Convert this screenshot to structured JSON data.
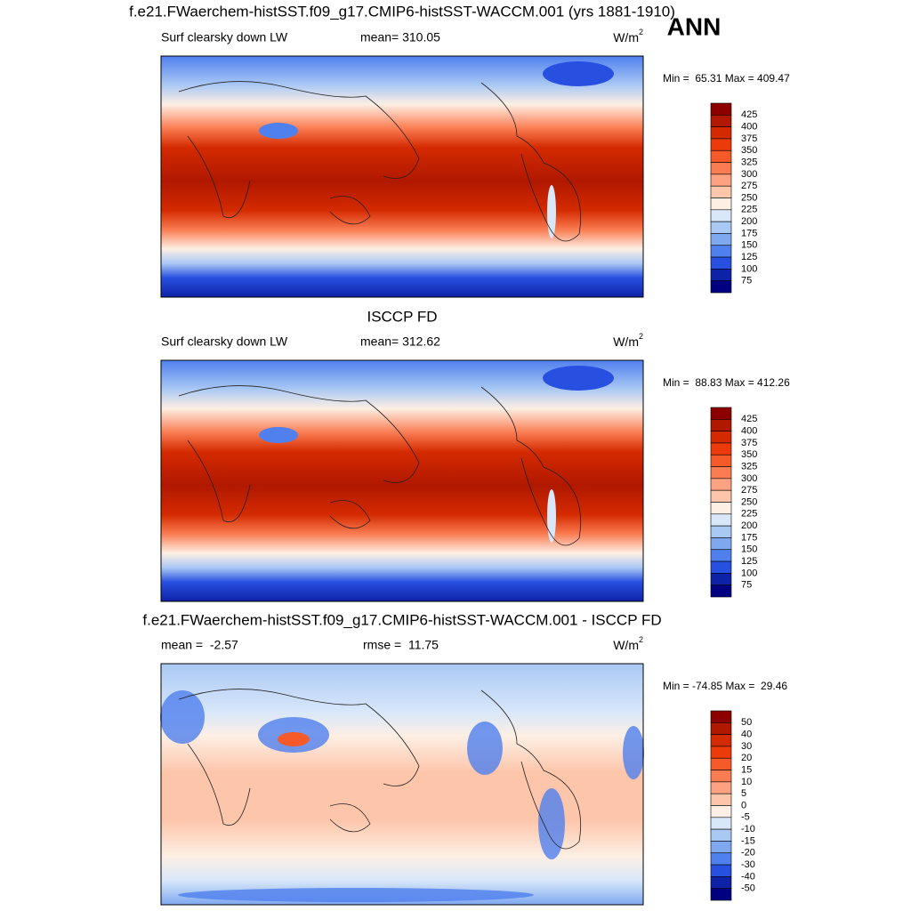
{
  "header": {
    "title": "f.e21.FWaerchem-histSST.f09_g17.CMIP6-histSST-WACCM.001 (yrs 1881-1910)",
    "season": "ANN"
  },
  "panels": [
    {
      "left_label": "Surf clearsky down LW",
      "center_label": "mean= 310.05",
      "units": {
        "base": "W/m",
        "sup": "2"
      },
      "range_text": "Min =  65.31 Max = 409.47",
      "colorbar": {
        "labels": [
          425,
          400,
          375,
          350,
          325,
          300,
          275,
          250,
          225,
          200,
          175,
          150,
          125,
          100,
          75
        ],
        "colors": [
          "#8c0000",
          "#b01800",
          "#d42a00",
          "#ec3a0a",
          "#f65a28",
          "#fa7c52",
          "#fca283",
          "#fdc6ab",
          "#fdefe4",
          "#d8e7fa",
          "#aac8f4",
          "#7fa8f0",
          "#4f80ee",
          "#2850e0",
          "#0e22a8",
          "#000080"
        ]
      }
    },
    {
      "title": "ISCCP FD",
      "left_label": "Surf clearsky down LW",
      "center_label": "mean= 312.62",
      "units": {
        "base": "W/m",
        "sup": "2"
      },
      "range_text": "Min =  88.83 Max = 412.26",
      "colorbar": {
        "labels": [
          425,
          400,
          375,
          350,
          325,
          300,
          275,
          250,
          225,
          200,
          175,
          150,
          125,
          100,
          75
        ],
        "colors": [
          "#8c0000",
          "#b01800",
          "#d42a00",
          "#ec3a0a",
          "#f65a28",
          "#fa7c52",
          "#fca283",
          "#fdc6ab",
          "#fdefe4",
          "#d8e7fa",
          "#aac8f4",
          "#7fa8f0",
          "#4f80ee",
          "#2850e0",
          "#0e22a8",
          "#000080"
        ]
      }
    },
    {
      "title": "f.e21.FWaerchem-histSST.f09_g17.CMIP6-histSST-WACCM.001 - ISCCP FD",
      "left_label": "mean =  -2.57",
      "center_label": "rmse =  11.75",
      "units": {
        "base": "W/m",
        "sup": "2"
      },
      "range_text": "Min = -74.85 Max =  29.46",
      "colorbar": {
        "labels": [
          50,
          40,
          30,
          20,
          15,
          10,
          5,
          0,
          -5,
          -10,
          -15,
          -20,
          -30,
          -40,
          -50
        ],
        "colors": [
          "#8c0000",
          "#b01800",
          "#d42a00",
          "#ec3a0a",
          "#f65a28",
          "#fa7c52",
          "#fca283",
          "#fdc6ab",
          "#fdefe4",
          "#d8e7fa",
          "#aac8f4",
          "#7fa8f0",
          "#4f80ee",
          "#2850e0",
          "#0e22a8",
          "#000080"
        ]
      }
    }
  ]
}
